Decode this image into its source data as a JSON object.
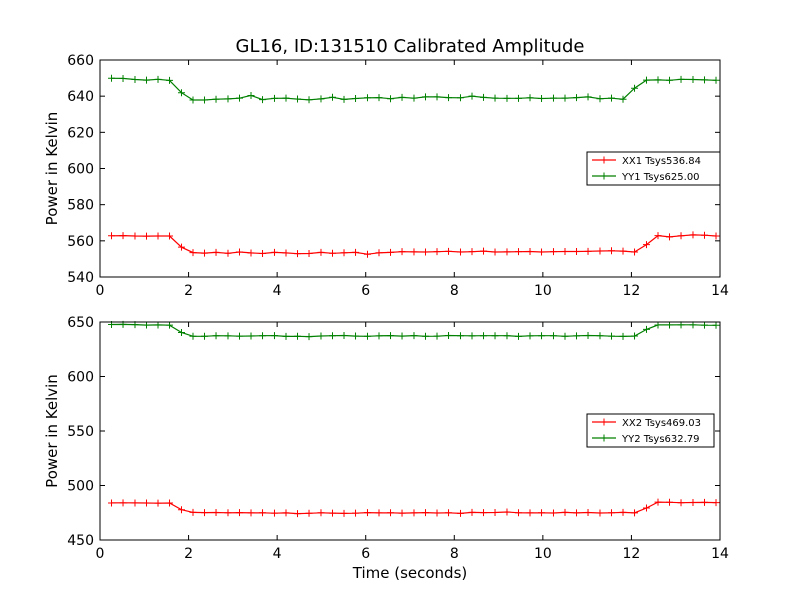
{
  "title": "GL16, ID:131510 Calibrated Amplitude",
  "xlabel": "Time (seconds)",
  "colors": {
    "xx": "#ff0000",
    "yy": "#008000"
  },
  "chart_data": [
    {
      "type": "line",
      "title": "GL16, ID:131510 Calibrated Amplitude",
      "xlabel": "",
      "ylabel": "Power in Kelvin",
      "xlim": [
        0,
        14
      ],
      "ylim": [
        540,
        660
      ],
      "xticks": [
        0,
        2,
        4,
        6,
        8,
        10,
        12,
        14
      ],
      "yticks": [
        540,
        560,
        580,
        600,
        620,
        640,
        660
      ],
      "legend_position": "right",
      "grid": false,
      "x": [
        0.26,
        0.52,
        0.79,
        1.05,
        1.31,
        1.57,
        1.84,
        2.1,
        2.36,
        2.62,
        2.89,
        3.15,
        3.41,
        3.67,
        3.94,
        4.2,
        4.46,
        4.72,
        4.99,
        5.25,
        5.51,
        5.77,
        6.04,
        6.3,
        6.56,
        6.82,
        7.09,
        7.35,
        7.61,
        7.87,
        8.14,
        8.4,
        8.66,
        8.92,
        9.19,
        9.45,
        9.71,
        9.97,
        10.24,
        10.5,
        10.76,
        11.02,
        11.29,
        11.55,
        11.81,
        12.07,
        12.34,
        12.6,
        12.86,
        13.12,
        13.39,
        13.65,
        13.91
      ],
      "series": [
        {
          "name": "XX1 Tsys536.84",
          "color": "#ff0000",
          "values": [
            562.8,
            562.9,
            562.7,
            562.6,
            562.7,
            562.7,
            556.5,
            553.5,
            553.2,
            553.6,
            553.1,
            553.8,
            553.3,
            553.0,
            553.6,
            553.3,
            552.9,
            553.0,
            553.6,
            553.1,
            553.4,
            553.6,
            552.6,
            553.4,
            553.6,
            554.0,
            553.9,
            553.8,
            554.0,
            554.2,
            553.8,
            554.0,
            554.3,
            553.8,
            553.9,
            554.0,
            554.1,
            553.8,
            554.0,
            554.1,
            554.1,
            554.2,
            554.4,
            554.5,
            554.3,
            553.8,
            557.9,
            562.9,
            562.2,
            562.8,
            563.3,
            563.1,
            562.7
          ]
        },
        {
          "name": "YY1 Tsys625.00",
          "color": "#008000",
          "values": [
            649.9,
            649.8,
            649.2,
            648.9,
            649.3,
            648.7,
            641.9,
            637.9,
            637.9,
            638.3,
            638.5,
            638.9,
            640.4,
            638.1,
            638.8,
            638.9,
            638.4,
            638.0,
            638.5,
            639.4,
            638.2,
            638.7,
            639.1,
            639.2,
            638.6,
            639.3,
            638.9,
            639.6,
            639.6,
            639.2,
            639.1,
            640.0,
            639.3,
            638.9,
            638.8,
            638.8,
            639.1,
            638.7,
            638.9,
            638.9,
            639.2,
            639.6,
            638.6,
            638.9,
            638.3,
            644.4,
            648.9,
            649.0,
            648.8,
            649.3,
            649.2,
            649.0,
            648.8
          ]
        }
      ]
    },
    {
      "type": "line",
      "title": "",
      "xlabel": "Time (seconds)",
      "ylabel": "Power in Kelvin",
      "xlim": [
        0,
        14
      ],
      "ylim": [
        450,
        650
      ],
      "xticks": [
        0,
        2,
        4,
        6,
        8,
        10,
        12,
        14
      ],
      "yticks": [
        450,
        500,
        550,
        600,
        650
      ],
      "legend_position": "right",
      "grid": false,
      "x": [
        0.26,
        0.52,
        0.79,
        1.05,
        1.31,
        1.57,
        1.84,
        2.1,
        2.36,
        2.62,
        2.89,
        3.15,
        3.41,
        3.67,
        3.94,
        4.2,
        4.46,
        4.72,
        4.99,
        5.25,
        5.51,
        5.77,
        6.04,
        6.3,
        6.56,
        6.82,
        7.09,
        7.35,
        7.61,
        7.87,
        8.14,
        8.4,
        8.66,
        8.92,
        9.19,
        9.45,
        9.71,
        9.97,
        10.24,
        10.5,
        10.76,
        11.02,
        11.29,
        11.55,
        11.81,
        12.07,
        12.34,
        12.6,
        12.86,
        13.12,
        13.39,
        13.65,
        13.91
      ],
      "series": [
        {
          "name": "XX2 Tsys469.03",
          "color": "#ff0000",
          "values": [
            484.0,
            484.1,
            484.0,
            483.9,
            483.8,
            483.9,
            477.8,
            475.3,
            475.1,
            475.2,
            475.0,
            475.1,
            474.9,
            475.0,
            474.6,
            474.9,
            474.2,
            474.5,
            475.0,
            474.7,
            474.4,
            474.6,
            475.1,
            474.9,
            475.0,
            474.7,
            474.9,
            475.1,
            474.8,
            475.0,
            474.4,
            475.3,
            475.1,
            475.2,
            475.7,
            475.0,
            474.9,
            475.0,
            474.8,
            475.3,
            474.9,
            475.2,
            474.8,
            475.0,
            475.3,
            474.9,
            479.4,
            484.8,
            484.6,
            484.2,
            484.4,
            484.5,
            484.3
          ]
        },
        {
          "name": "YY2 Tsys632.79",
          "color": "#008000",
          "values": [
            647.7,
            647.8,
            647.6,
            647.2,
            647.3,
            647.1,
            640.4,
            636.9,
            636.9,
            637.4,
            637.3,
            637.0,
            637.2,
            637.4,
            637.5,
            636.8,
            636.9,
            636.6,
            637.2,
            637.4,
            637.6,
            637.1,
            636.9,
            637.3,
            637.5,
            637.1,
            637.5,
            636.9,
            637.0,
            637.6,
            637.4,
            637.3,
            637.4,
            637.4,
            637.4,
            636.8,
            637.3,
            637.4,
            637.4,
            636.9,
            637.3,
            637.6,
            637.4,
            637.0,
            636.8,
            637.1,
            643.2,
            647.3,
            647.3,
            647.4,
            647.4,
            647.1,
            647.0
          ]
        }
      ]
    }
  ]
}
